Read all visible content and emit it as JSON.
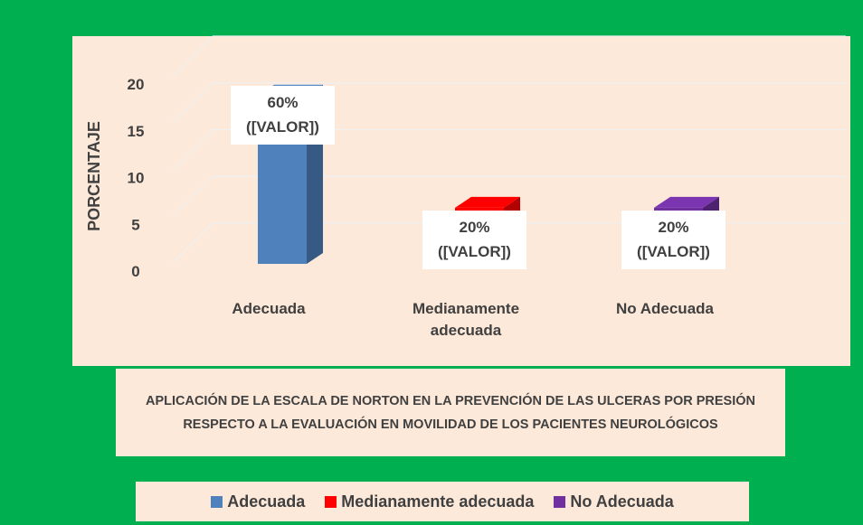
{
  "chart_data": {
    "type": "bar3d",
    "title": "APLICACIÓN DE LA  ESCALA DE NORTON EN LA PREVENCIÓN DE LAS ULCERAS POR PRESIÓN  RESPECTO A LA EVALUACIÓN EN MOVILIDAD  DE LOS PACIENTES NEUROLÓGICOS",
    "y_label": "PORCENTAJE",
    "categories": [
      "Adecuada",
      "Medianamente adecuada",
      "No Adecuada"
    ],
    "series": [
      {
        "name": "Adecuada",
        "color": "#4f81bd"
      },
      {
        "name": "Medianamente adecuada",
        "color": "#ff0000"
      },
      {
        "name": "No Adecuada",
        "color": "#7030a0"
      }
    ],
    "values": [
      18,
      6,
      6
    ],
    "data_labels": [
      [
        "60%",
        "([VALOR])"
      ],
      [
        "20%",
        "([VALOR])"
      ],
      [
        "20%",
        "([VALOR])"
      ]
    ],
    "ylim": [
      0,
      20
    ],
    "yticks": [
      0,
      5,
      10,
      15,
      20
    ],
    "grid": true
  }
}
